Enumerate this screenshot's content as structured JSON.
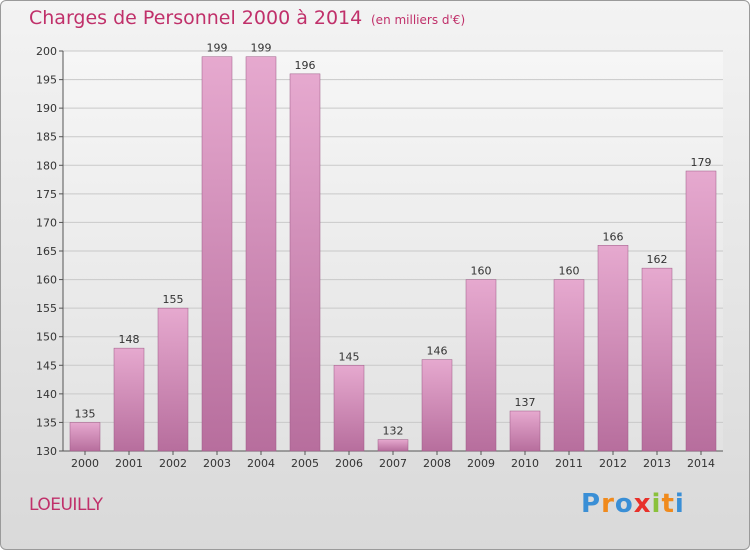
{
  "chart_data": {
    "type": "bar",
    "title": "Charges de Personnel 2000 à 2014",
    "subtitle": "(en milliers d'€)",
    "categories": [
      "2000",
      "2001",
      "2002",
      "2003",
      "2004",
      "2005",
      "2006",
      "2007",
      "2008",
      "2009",
      "2010",
      "2011",
      "2012",
      "2013",
      "2014"
    ],
    "values": [
      135,
      148,
      155,
      199,
      199,
      196,
      145,
      132,
      146,
      160,
      137,
      160,
      166,
      162,
      179
    ],
    "ylim": [
      130,
      200
    ],
    "yticks": [
      130,
      135,
      140,
      145,
      150,
      155,
      160,
      165,
      170,
      175,
      180,
      185,
      190,
      195,
      200
    ],
    "grid": true,
    "bar_color": "#d98fbc",
    "text_color": "#c0306a"
  },
  "footer": {
    "place": "LOEUILLY",
    "logo": "Proxiti",
    "logo_colors": [
      "#3a8fd6",
      "#f08a1c",
      "#3a8fd6",
      "#e8302a",
      "#8ac13b",
      "#f08a1c",
      "#3a8fd6"
    ]
  }
}
